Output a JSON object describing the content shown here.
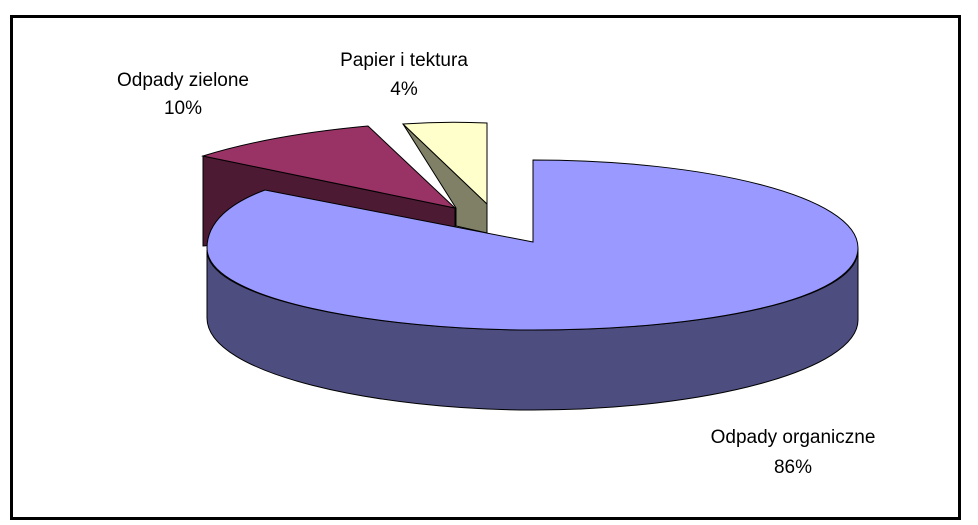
{
  "chart_data": {
    "type": "pie",
    "style": "3d-exploded",
    "title": "",
    "legend": "none",
    "slices": [
      {
        "label": "Odpady organiczne",
        "value": 86,
        "value_label": "86%",
        "color": "#9999ff",
        "side_color": "#4d4d80"
      },
      {
        "label": "Odpady zielone",
        "value": 10,
        "value_label": "10%",
        "color": "#993366",
        "side_color": "#4d1a33"
      },
      {
        "label": "Papier i tektura",
        "value": 4,
        "value_label": "4%",
        "color": "#ffffcc",
        "side_color": "#808066"
      }
    ]
  }
}
